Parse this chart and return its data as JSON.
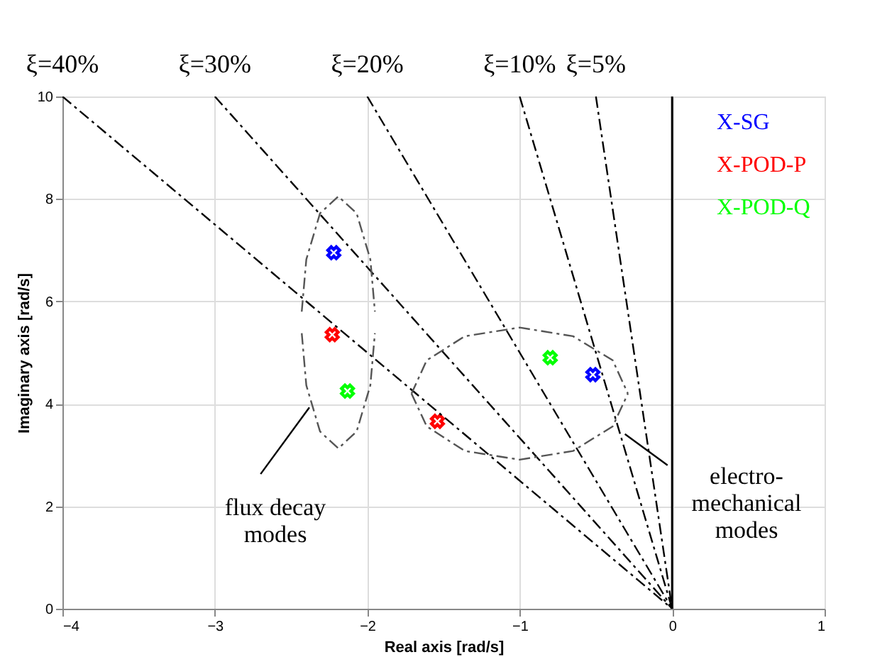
{
  "chart_data": {
    "type": "scatter",
    "xlabel": "Real axis [rad/s]",
    "ylabel": "Imaginary axis [rad/s]",
    "xlim": [
      -4,
      1
    ],
    "xticks": [
      -4,
      -3,
      -2,
      -1,
      0,
      1
    ],
    "ylim": [
      0,
      10
    ],
    "yticks": [
      0,
      2,
      4,
      6,
      8,
      10
    ],
    "grid": true,
    "legend": "top right",
    "series": [
      {
        "name": "X-SG",
        "color": "#0000ff",
        "marker": "cross",
        "x": [
          -2.22,
          -0.52
        ],
        "values": [
          6.95,
          4.57
        ]
      },
      {
        "name": "X-POD-P",
        "color": "#ff0000",
        "marker": "cross",
        "x": [
          -2.23,
          -1.54
        ],
        "values": [
          5.35,
          3.66
        ]
      },
      {
        "name": "X-POD-Q",
        "color": "#00ff00",
        "marker": "cross",
        "x": [
          -2.13,
          -0.8
        ],
        "values": [
          4.25,
          4.9
        ]
      },
      {
        "name": "ξ=40%",
        "color": "#000000",
        "type": "line",
        "line_style": "dashed",
        "x": [
          -4,
          0
        ],
        "values": [
          10,
          0
        ]
      },
      {
        "name": "ξ=30%",
        "color": "#000000",
        "type": "line",
        "line_style": "dashed",
        "x": [
          -3,
          0
        ],
        "values": [
          10,
          0
        ]
      },
      {
        "name": "ξ=20%",
        "color": "#000000",
        "type": "line",
        "line_style": "dashed",
        "x": [
          -2,
          0
        ],
        "values": [
          10,
          0
        ]
      },
      {
        "name": "ξ=10%",
        "color": "#000000",
        "type": "line",
        "line_style": "dashed",
        "x": [
          -1,
          0
        ],
        "values": [
          10,
          0
        ]
      },
      {
        "name": "ξ=5%",
        "color": "#000000",
        "type": "line",
        "line_style": "dashed",
        "x": [
          -0.5,
          0
        ],
        "values": [
          10,
          0
        ]
      },
      {
        "color": "#555555",
        "type": "line",
        "line_style": "dashed",
        "x": [
          -2.43,
          -2.4,
          -2.31,
          -2.19,
          -2.07,
          -1.98,
          -1.95
        ],
        "values": [
          5.8,
          6.82,
          7.72,
          8.05,
          7.72,
          6.82,
          5.8
        ]
      },
      {
        "color": "#555555",
        "type": "line",
        "line_style": "dashed",
        "x": [
          -2.43,
          -2.4,
          -2.31,
          -2.19,
          -2.07,
          -1.98,
          -1.95
        ],
        "values": [
          5.38,
          4.36,
          3.46,
          3.13,
          3.46,
          4.36,
          5.38
        ]
      },
      {
        "color": "#555555",
        "type": "line",
        "line_style": "dashed",
        "x": [
          -1.71,
          -1.61,
          -1.36,
          -1.0,
          -0.65,
          -0.39,
          -0.29
        ],
        "values": [
          4.2,
          4.85,
          5.32,
          5.49,
          5.32,
          4.85,
          4.2
        ]
      },
      {
        "color": "#555555",
        "type": "line",
        "line_style": "dashed",
        "x": [
          -1.71,
          -1.61,
          -1.36,
          -1.0,
          -0.65,
          -0.39,
          -0.29
        ],
        "values": [
          4.2,
          3.56,
          3.08,
          2.91,
          3.08,
          3.56,
          4.2
        ]
      },
      {
        "color": "#000000",
        "type": "line",
        "line_style": "solid",
        "x": [
          -2.7,
          -2.38
        ],
        "values": [
          2.63,
          3.93
        ]
      },
      {
        "color": "#000000",
        "type": "line",
        "line_style": "solid",
        "x": [
          -0.31,
          -0.03
        ],
        "values": [
          3.41,
          2.8
        ]
      }
    ],
    "ref_lines": [
      {
        "axis": "x",
        "value": 0,
        "color": "#000000",
        "line_style": "solid"
      }
    ],
    "annotations": [
      "flux decay\nmodes",
      "electro-\nmechanical\nmodes"
    ]
  }
}
